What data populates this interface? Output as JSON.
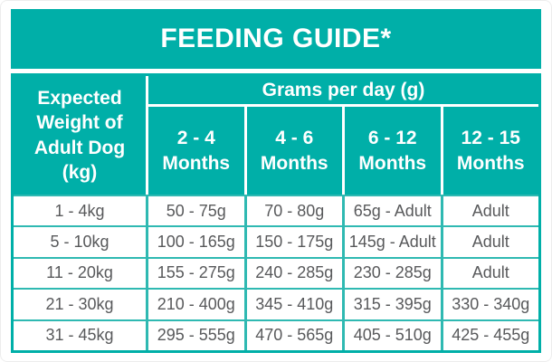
{
  "colors": {
    "teal": "#00AFA8",
    "grid_teal": "#2FB9B2",
    "text_gray": "#58595B"
  },
  "card": {
    "title": "FEEDING GUIDE*"
  },
  "table": {
    "weight_header": "Expected Weight of Adult Dog (kg)",
    "group_header": "Grams per day (g)",
    "month_columns": [
      "2 - 4 Months",
      "4 - 6 Months",
      "6 - 12 Months",
      "12 - 15 Months"
    ],
    "rows": [
      {
        "weight": "1 - 4kg",
        "values": [
          "50 - 75g",
          "70 - 80g",
          "65g - Adult",
          "Adult"
        ]
      },
      {
        "weight": "5 - 10kg",
        "values": [
          "100 - 165g",
          "150 - 175g",
          "145g - Adult",
          "Adult"
        ]
      },
      {
        "weight": "11 - 20kg",
        "values": [
          "155 - 275g",
          "240 - 285g",
          "230 - 285g",
          "Adult"
        ]
      },
      {
        "weight": "21 - 30kg",
        "values": [
          "210 - 400g",
          "345 - 410g",
          "315 - 395g",
          "330 - 340g"
        ]
      },
      {
        "weight": "31 - 45kg",
        "values": [
          "295 - 555g",
          "470 - 565g",
          "405 - 510g",
          "425 - 455g"
        ]
      }
    ]
  }
}
